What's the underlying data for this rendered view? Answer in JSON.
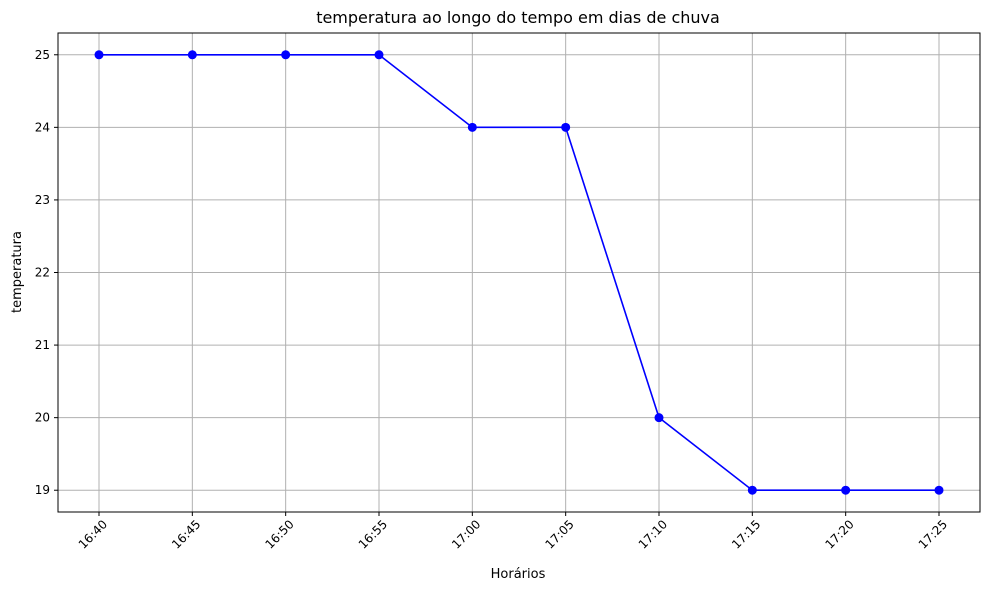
{
  "chart_data": {
    "type": "line",
    "title": "temperatura ao longo do tempo em dias de chuva",
    "xlabel": "Horários",
    "ylabel": "temperatura",
    "categories": [
      "16:40",
      "16:45",
      "16:50",
      "16:55",
      "17:00",
      "17:05",
      "17:10",
      "17:15",
      "17:20",
      "17:25"
    ],
    "series": [
      {
        "values": [
          25,
          25,
          25,
          25,
          24,
          24,
          20,
          19,
          19,
          19
        ]
      }
    ],
    "yticks": [
      19,
      20,
      21,
      22,
      23,
      24,
      25
    ],
    "ylim": [
      18.7,
      25.3
    ],
    "grid": true,
    "x_tick_rotation_deg": 45,
    "colors": {
      "line": "#0000ff",
      "marker": "#0000ff",
      "grid": "#b0b0b0"
    }
  }
}
